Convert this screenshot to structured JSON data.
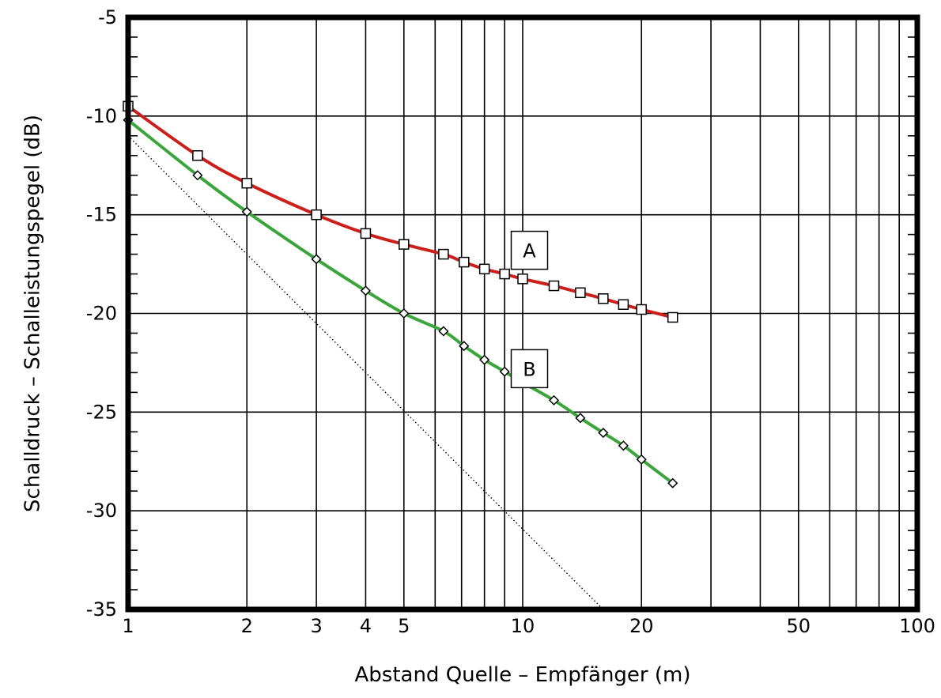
{
  "chart_data": {
    "type": "line",
    "xlabel": "Abstand Quelle – Empfänger (m)",
    "ylabel": "Schalldruck – Schalleistungspegel (dB)",
    "x_scale": "log",
    "xlim": [
      1,
      100
    ],
    "ylim": [
      -35,
      -5
    ],
    "grid": true,
    "x_ticks": [
      1,
      2,
      3,
      4,
      5,
      10,
      20,
      50,
      100
    ],
    "x_tick_labels": [
      "1",
      "2",
      "3",
      "4",
      "5",
      "10",
      "20",
      "50",
      "100"
    ],
    "y_ticks": [
      -5,
      -10,
      -15,
      -20,
      -25,
      -30,
      -35
    ],
    "y_tick_labels": [
      "-5",
      "-10",
      "-15",
      "-20",
      "-25",
      "-30",
      "-35"
    ],
    "series": [
      {
        "name": "A",
        "color": "#cc1f1a",
        "marker": "square",
        "x": [
          1,
          1.5,
          2,
          3,
          4,
          5,
          6.3,
          7.1,
          8,
          9,
          10,
          12,
          14,
          16,
          18,
          20,
          24
        ],
        "y": [
          -9.5,
          -12.0,
          -13.4,
          -15.0,
          -15.95,
          -16.5,
          -17.0,
          -17.4,
          -17.75,
          -18.0,
          -18.25,
          -18.6,
          -18.95,
          -19.25,
          -19.55,
          -19.8,
          -20.2
        ]
      },
      {
        "name": "B",
        "color": "#3aa53a",
        "marker": "diamond",
        "x": [
          1,
          1.5,
          2,
          3,
          4,
          5,
          6.3,
          7.1,
          8,
          9,
          10,
          12,
          14,
          16,
          18,
          20,
          24
        ],
        "y": [
          -10.2,
          -13.0,
          -14.85,
          -17.25,
          -18.85,
          -20.0,
          -20.9,
          -21.65,
          -22.35,
          -22.95,
          -23.5,
          -24.4,
          -25.3,
          -26.05,
          -26.7,
          -27.4,
          -28.6
        ]
      },
      {
        "name": "",
        "color": "#000000",
        "style": "dotted",
        "x": [
          1,
          16
        ],
        "y": [
          -11.0,
          -35.0
        ]
      }
    ],
    "annotations": [
      {
        "text": "A",
        "x": 10.4,
        "y": -16.8
      },
      {
        "text": "B",
        "x": 10.4,
        "y": -22.8
      }
    ]
  }
}
